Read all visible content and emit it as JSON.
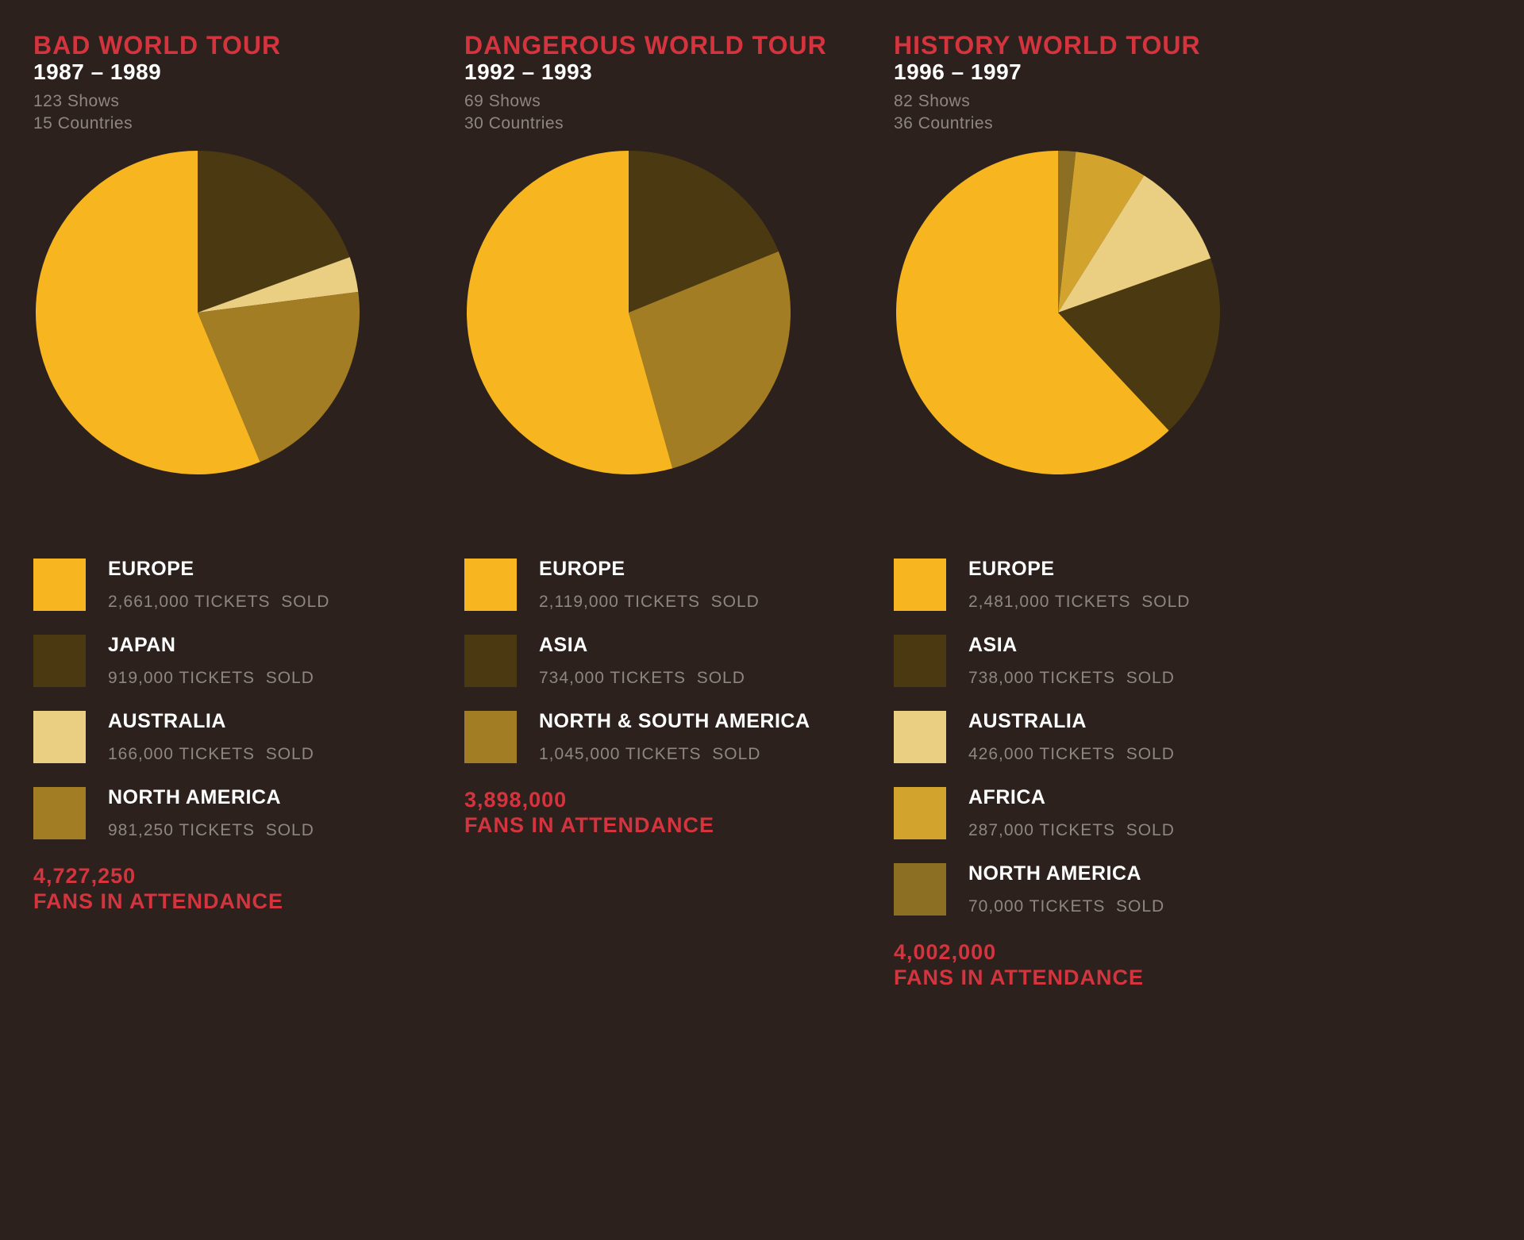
{
  "page": {
    "background_color": "#2c211d",
    "title_color": "#d4343e",
    "text_color": "#ffffff",
    "muted_color": "#8e8683"
  },
  "chart_data": [
    {
      "type": "pie",
      "title": "BAD WORLD TOUR",
      "years": "1987 – 1989",
      "shows": "123 Shows",
      "countries": "15 Countries",
      "legend": [
        {
          "label": "EUROPE",
          "tickets_text": "2,661,000 TICKETS  SOLD",
          "value": 2661000,
          "color": "#f7b51f"
        },
        {
          "label": "JAPAN",
          "tickets_text": "919,000 TICKETS  SOLD",
          "value": 919000,
          "color": "#4b3a11"
        },
        {
          "label": "AUSTRALIA",
          "tickets_text": "166,000 TICKETS  SOLD",
          "value": 166000,
          "color": "#eacf82"
        },
        {
          "label": "NORTH AMERICA",
          "tickets_text": "981,250 TICKETS  SOLD",
          "value": 981250,
          "color": "#a27d24"
        }
      ],
      "pie_order": [
        1,
        2,
        3,
        0
      ],
      "total": "4,727,250",
      "total_label": "FANS IN ATTENDANCE"
    },
    {
      "type": "pie",
      "title": "DANGEROUS WORLD TOUR",
      "years": "1992 – 1993",
      "shows": "69 Shows",
      "countries": "30 Countries",
      "legend": [
        {
          "label": "EUROPE",
          "tickets_text": "2,119,000 TICKETS  SOLD",
          "value": 2119000,
          "color": "#f7b51f"
        },
        {
          "label": "ASIA",
          "tickets_text": "734,000 TICKETS  SOLD",
          "value": 734000,
          "color": "#4b3a11"
        },
        {
          "label": "NORTH & SOUTH AMERICA",
          "tickets_text": "1,045,000 TICKETS  SOLD",
          "value": 1045000,
          "color": "#a27d24"
        }
      ],
      "pie_order": [
        1,
        2,
        0
      ],
      "total": "3,898,000",
      "total_label": "FANS IN ATTENDANCE"
    },
    {
      "type": "pie",
      "title": "HISTORY WORLD TOUR",
      "years": "1996 – 1997",
      "shows": "82 Shows",
      "countries": "36 Countries",
      "legend": [
        {
          "label": "EUROPE",
          "tickets_text": "2,481,000 TICKETS  SOLD",
          "value": 2481000,
          "color": "#f7b51f"
        },
        {
          "label": "ASIA",
          "tickets_text": "738,000 TICKETS  SOLD",
          "value": 738000,
          "color": "#4b3a11"
        },
        {
          "label": "AUSTRALIA",
          "tickets_text": "426,000 TICKETS  SOLD",
          "value": 426000,
          "color": "#eacf82"
        },
        {
          "label": "AFRICA",
          "tickets_text": "287,000 TICKETS  SOLD",
          "value": 287000,
          "color": "#d2a42e"
        },
        {
          "label": "NORTH AMERICA",
          "tickets_text": "70,000 TICKETS  SOLD",
          "value": 70000,
          "color": "#8c6f23"
        }
      ],
      "pie_order": [
        4,
        3,
        2,
        1,
        0
      ],
      "total": "4,002,000",
      "total_label": "FANS IN ATTENDANCE"
    }
  ]
}
